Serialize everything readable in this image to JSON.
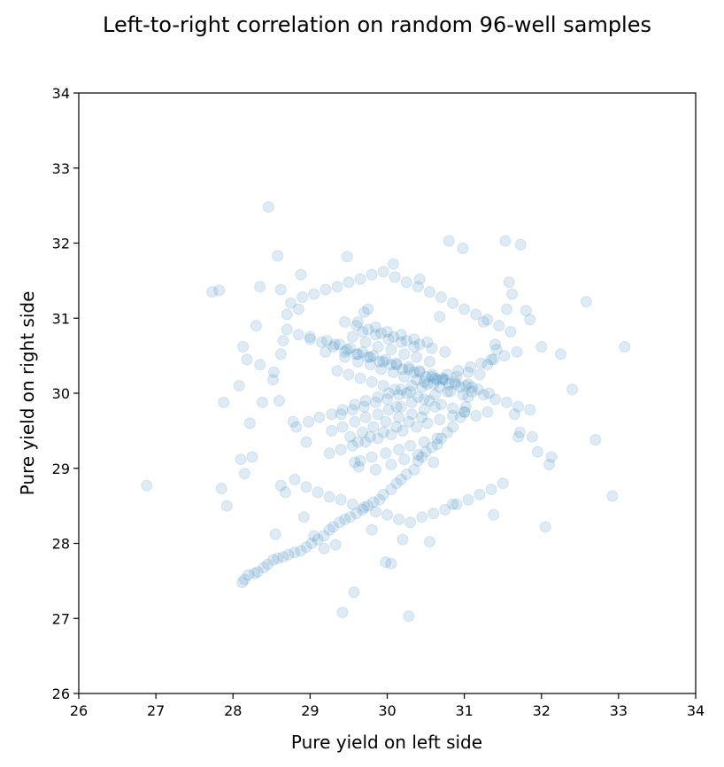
{
  "chart_data": {
    "type": "scatter",
    "title": "Left-to-right correlation on random 96-well samples",
    "xlabel": "Pure yield on left side",
    "ylabel": "Pure yield on right side",
    "xlim": [
      26,
      34
    ],
    "ylim": [
      26,
      34
    ],
    "xticks": [
      26,
      27,
      28,
      29,
      30,
      31,
      32,
      33,
      34
    ],
    "yticks": [
      26,
      27,
      28,
      29,
      30,
      31,
      32,
      33,
      34
    ],
    "grid": false,
    "legend": "none",
    "marker": {
      "shape": "circle",
      "color": "#1f77b4",
      "alpha": 0.15
    },
    "series": [
      {
        "x": [
          26.88,
          27.73,
          27.82,
          27.85,
          27.88,
          27.92,
          28.08,
          28.1,
          28.13,
          28.15,
          28.18,
          28.22,
          28.25,
          28.3,
          28.35,
          28.38,
          28.46,
          28.53,
          28.58,
          28.62,
          28.55,
          28.62,
          28.7,
          28.8,
          28.88,
          28.95,
          28.68,
          28.85,
          28.92,
          28.6,
          28.65,
          29.05,
          29.18,
          29.33,
          29.42,
          29.48,
          29.57,
          29.63,
          29.75,
          29.8,
          29.58,
          29.7,
          29.85,
          29.98,
          30.05,
          30.08,
          30.2,
          30.28,
          30.42,
          30.55,
          30.6,
          30.68,
          30.8,
          30.98,
          31.05,
          31.25,
          31.3,
          31.53,
          31.58,
          31.62,
          31.73,
          32.05,
          32.13,
          32.25,
          32.4,
          32.58,
          32.7,
          32.92,
          33.08,
          32.0,
          31.95,
          31.85,
          31.8,
          31.7,
          31.65,
          31.55,
          31.4,
          31.42,
          31.35,
          31.3,
          31.2,
          31.1,
          31.05,
          31.02,
          30.95,
          30.85,
          30.78,
          30.7,
          30.65,
          30.58,
          30.5,
          30.45,
          30.4,
          30.35,
          30.25,
          30.18,
          30.12,
          30.05,
          29.95,
          29.9,
          29.82,
          29.75,
          29.68,
          29.6,
          29.52,
          29.45,
          29.38,
          29.3,
          29.25,
          29.18,
          29.1,
          29.02,
          28.95,
          28.88,
          28.8,
          28.72,
          28.65,
          28.58,
          28.52,
          28.45,
          28.4,
          28.32,
          28.28,
          28.2,
          28.15,
          28.12,
          28.7,
          28.85,
          29.0,
          29.15,
          29.3,
          29.45,
          29.6,
          29.75,
          29.9,
          30.05,
          30.2,
          30.35,
          30.5,
          30.65,
          30.8,
          30.95,
          31.1,
          31.25,
          31.4,
          31.55,
          31.7,
          31.85,
          29.35,
          29.5,
          29.65,
          29.8,
          29.95,
          30.1,
          30.25,
          30.4,
          30.55,
          30.7,
          30.85,
          31.0,
          31.15,
          29.4,
          29.55,
          29.7,
          29.85,
          30.0,
          30.15,
          30.3,
          30.45,
          30.6,
          30.75,
          30.9,
          31.05,
          29.2,
          29.45,
          29.62,
          29.78,
          29.92,
          30.08,
          30.22,
          30.38,
          30.52,
          30.68,
          30.82,
          30.98,
          29.28,
          29.42,
          29.58,
          29.72,
          29.88,
          30.02,
          30.18,
          30.32,
          30.48,
          30.62,
          30.78,
          29.32,
          29.48,
          29.62,
          29.78,
          29.95,
          30.12,
          30.28,
          30.42,
          30.58,
          30.72,
          30.88,
          29.52,
          29.68,
          29.82,
          29.98,
          30.15,
          30.32,
          30.48,
          30.62,
          29.55,
          29.72,
          29.88,
          30.05,
          30.22,
          30.38,
          30.55,
          29.62,
          29.78,
          29.95,
          30.12,
          30.28,
          30.45,
          29.68,
          29.85,
          30.02,
          30.18,
          30.35,
          28.75,
          28.9,
          29.05,
          29.2,
          29.35,
          29.5,
          29.65,
          29.8,
          29.95,
          30.1,
          30.25,
          30.4,
          30.55,
          30.7,
          30.85,
          31.0,
          31.15,
          31.3,
          31.45,
          31.6,
          28.95,
          29.1,
          29.25,
          29.4,
          29.55,
          29.7,
          29.85,
          30.0,
          30.15,
          30.3,
          30.45,
          30.6,
          30.75,
          30.9,
          31.05,
          31.2,
          31.35,
          31.5,
          28.82,
          28.98,
          29.12,
          29.28,
          29.42,
          29.58,
          29.72,
          29.88,
          30.02,
          30.18,
          30.32,
          30.48,
          30.62,
          30.78,
          30.92,
          31.08,
          31.22,
          31.38,
          31.52,
          31.68,
          29.0,
          29.22,
          29.38,
          29.52,
          29.68,
          29.82,
          29.98,
          30.12,
          30.28,
          30.42,
          30.58,
          30.72,
          30.88,
          31.02,
          31.18,
          31.32,
          29.25,
          29.4,
          29.55,
          29.72,
          29.88,
          30.05,
          30.2,
          30.38,
          30.52,
          30.68,
          30.85,
          31.0,
          29.45,
          29.6,
          29.75,
          29.92,
          30.08,
          30.25,
          30.42,
          30.58,
          30.75,
          29.65,
          29.8,
          29.98,
          30.15,
          30.3,
          30.48,
          30.65,
          29.85,
          30.0,
          30.18,
          30.35,
          30.52,
          30.05,
          30.22,
          30.4,
          28.62,
          28.78,
          29.62,
          30.12,
          30.85,
          31.38,
          31.72,
          28.35,
          28.52,
          31.88,
          32.1
        ],
        "y": [
          28.77,
          31.35,
          31.37,
          28.73,
          29.88,
          28.5,
          30.1,
          29.12,
          30.62,
          28.93,
          30.45,
          29.6,
          29.15,
          30.9,
          30.38,
          29.88,
          32.48,
          30.28,
          31.83,
          31.38,
          28.12,
          28.77,
          31.05,
          28.85,
          31.58,
          29.35,
          28.68,
          31.12,
          28.35,
          29.9,
          30.7,
          28.1,
          27.93,
          27.98,
          27.08,
          31.82,
          27.35,
          29.02,
          31.12,
          28.18,
          29.08,
          31.08,
          28.98,
          27.75,
          27.73,
          31.72,
          28.05,
          27.03,
          31.52,
          28.02,
          29.08,
          31.02,
          32.03,
          31.93,
          30.12,
          30.95,
          29.75,
          32.03,
          31.48,
          31.32,
          31.98,
          28.22,
          29.15,
          30.52,
          30.05,
          31.22,
          29.38,
          28.63,
          30.62,
          30.62,
          29.22,
          30.98,
          31.1,
          29.42,
          29.72,
          31.12,
          30.65,
          30.58,
          30.45,
          30.38,
          30.25,
          30.08,
          29.95,
          29.82,
          29.68,
          29.55,
          29.48,
          29.4,
          29.32,
          29.28,
          29.22,
          29.15,
          29.1,
          28.98,
          28.92,
          28.85,
          28.8,
          28.72,
          28.65,
          28.58,
          28.55,
          28.5,
          28.45,
          28.4,
          28.35,
          28.32,
          28.28,
          28.22,
          28.18,
          28.1,
          28.05,
          28.0,
          27.95,
          27.9,
          27.88,
          27.85,
          27.82,
          27.8,
          27.78,
          27.72,
          27.68,
          27.62,
          27.6,
          27.58,
          27.52,
          27.48,
          30.85,
          30.78,
          30.72,
          30.68,
          30.62,
          30.55,
          30.52,
          30.48,
          30.42,
          30.38,
          30.32,
          30.28,
          30.22,
          30.18,
          30.12,
          30.08,
          30.02,
          29.98,
          29.92,
          29.88,
          29.82,
          29.78,
          30.3,
          30.25,
          30.2,
          30.15,
          30.1,
          30.05,
          30.0,
          29.95,
          29.9,
          29.85,
          29.8,
          29.75,
          29.7,
          29.72,
          29.78,
          29.82,
          29.88,
          29.92,
          29.98,
          30.02,
          30.08,
          30.12,
          30.18,
          30.22,
          30.28,
          30.55,
          30.48,
          30.42,
          30.38,
          30.32,
          30.28,
          30.22,
          30.18,
          30.12,
          30.08,
          30.02,
          29.98,
          29.5,
          29.55,
          29.62,
          29.68,
          29.72,
          29.78,
          29.82,
          29.88,
          29.92,
          29.98,
          30.02,
          30.65,
          30.58,
          30.52,
          30.48,
          30.42,
          30.38,
          30.32,
          30.28,
          30.22,
          30.18,
          30.12,
          29.42,
          29.48,
          29.55,
          29.62,
          29.68,
          29.72,
          29.78,
          29.82,
          30.75,
          30.68,
          30.62,
          30.58,
          30.52,
          30.48,
          30.42,
          29.35,
          29.42,
          29.48,
          29.55,
          29.62,
          29.68,
          30.82,
          30.78,
          30.72,
          30.68,
          30.62,
          31.2,
          31.28,
          31.32,
          31.38,
          31.42,
          31.48,
          31.52,
          31.58,
          31.62,
          31.55,
          31.48,
          31.42,
          31.35,
          31.28,
          31.2,
          31.12,
          31.05,
          30.98,
          30.9,
          30.82,
          28.75,
          28.68,
          28.62,
          28.58,
          28.52,
          28.48,
          28.42,
          28.38,
          28.32,
          28.28,
          28.35,
          28.4,
          28.45,
          28.52,
          28.58,
          28.65,
          28.72,
          28.8,
          29.55,
          29.62,
          29.68,
          29.72,
          29.78,
          29.85,
          29.9,
          29.95,
          30.0,
          30.05,
          30.1,
          30.15,
          30.2,
          30.25,
          30.3,
          30.35,
          30.4,
          30.45,
          30.5,
          30.55,
          30.75,
          30.7,
          30.65,
          30.6,
          30.55,
          30.5,
          30.45,
          30.4,
          30.35,
          30.3,
          30.25,
          30.2,
          30.15,
          30.1,
          30.05,
          30.0,
          29.2,
          29.25,
          29.3,
          29.35,
          29.4,
          29.45,
          29.5,
          29.55,
          29.6,
          29.65,
          29.7,
          29.75,
          30.95,
          30.9,
          30.85,
          30.8,
          30.75,
          30.7,
          30.65,
          30.6,
          30.55,
          29.1,
          29.15,
          29.2,
          29.25,
          29.3,
          29.35,
          29.4,
          30.88,
          30.82,
          30.78,
          30.72,
          30.68,
          29.05,
          29.12,
          29.18,
          30.52,
          29.62,
          30.95,
          29.82,
          28.52,
          28.38,
          29.48,
          31.42,
          30.18,
          29.42,
          29.05
        ]
      }
    ]
  }
}
